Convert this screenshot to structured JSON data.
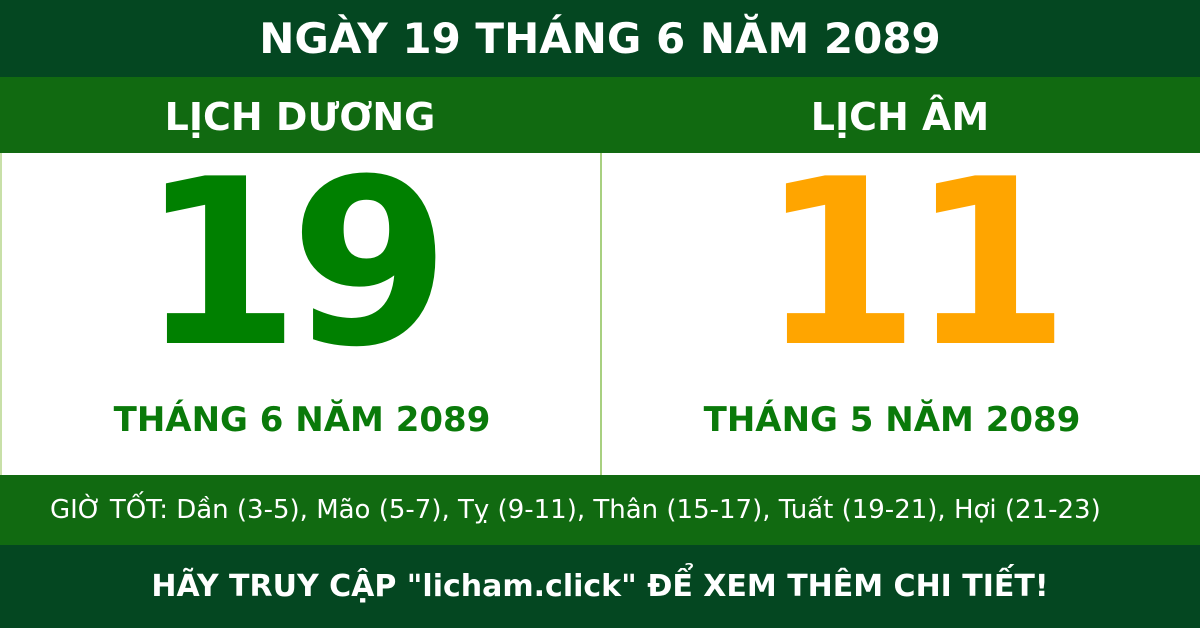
{
  "header": {
    "title": "NGÀY 19 THÁNG 6 NĂM 2089"
  },
  "solar": {
    "label": "LỊCH DƯƠNG",
    "day": "19",
    "month_year": "THÁNG 6 NĂM 2089"
  },
  "lunar": {
    "label": "LỊCH ÂM",
    "day": "11",
    "month_year": "THÁNG 5 NĂM 2089"
  },
  "good_hours": "GIỜ TỐT: Dần (3-5), Mão (5-7), Tỵ (9-11), Thân (15-17), Tuất (19-21), Hợi (21-23)",
  "footer": {
    "text": "HÃY TRUY CẬP \"licham.click\" ĐỂ XEM THÊM CHI TIẾT!"
  },
  "colors": {
    "dark_green": "#044721",
    "green": "#116a11",
    "solar_day": "#008000",
    "lunar_day": "#ffa500"
  }
}
